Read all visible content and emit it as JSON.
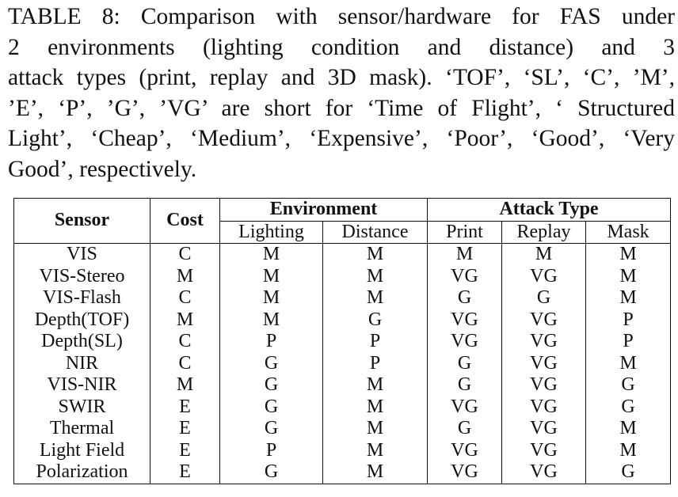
{
  "caption_lines": [
    "TABLE 8: Comparison with sensor/hardware for FAS under",
    "2 environments (lighting condition and distance) and 3",
    "attack types (print, replay and 3D mask). ‘TOF’, ‘SL’, ‘C’, ’M’,",
    "’E’, ‘P’, ’G’, ’VG’ are short for ‘Time of Flight’, ‘ Structured",
    "Light’, ‘Cheap’, ‘Medium’, ‘Expensive’, ‘Poor’, ‘Good’, ‘Very",
    "Good’, respectively."
  ],
  "table": {
    "headers": {
      "sensor": "Sensor",
      "cost": "Cost",
      "environment": "Environment",
      "attack_type": "Attack Type",
      "sub": [
        "Lighting",
        "Distance",
        "Print",
        "Replay",
        "Mask"
      ]
    },
    "rows": [
      [
        "VIS",
        "C",
        "M",
        "M",
        "M",
        "M",
        "M"
      ],
      [
        "VIS-Stereo",
        "M",
        "M",
        "M",
        "VG",
        "VG",
        "M"
      ],
      [
        "VIS-Flash",
        "C",
        "M",
        "M",
        "G",
        "G",
        "M"
      ],
      [
        "Depth(TOF)",
        "M",
        "M",
        "G",
        "VG",
        "VG",
        "P"
      ],
      [
        "Depth(SL)",
        "C",
        "P",
        "P",
        "VG",
        "VG",
        "P"
      ],
      [
        "NIR",
        "C",
        "G",
        "P",
        "G",
        "VG",
        "M"
      ],
      [
        "VIS-NIR",
        "M",
        "G",
        "M",
        "G",
        "VG",
        "G"
      ],
      [
        "SWIR",
        "E",
        "G",
        "M",
        "VG",
        "VG",
        "G"
      ],
      [
        "Thermal",
        "E",
        "G",
        "M",
        "G",
        "VG",
        "M"
      ],
      [
        "Light Field",
        "E",
        "P",
        "M",
        "VG",
        "VG",
        "M"
      ],
      [
        "Polarization",
        "E",
        "G",
        "M",
        "VG",
        "VG",
        "G"
      ]
    ]
  }
}
